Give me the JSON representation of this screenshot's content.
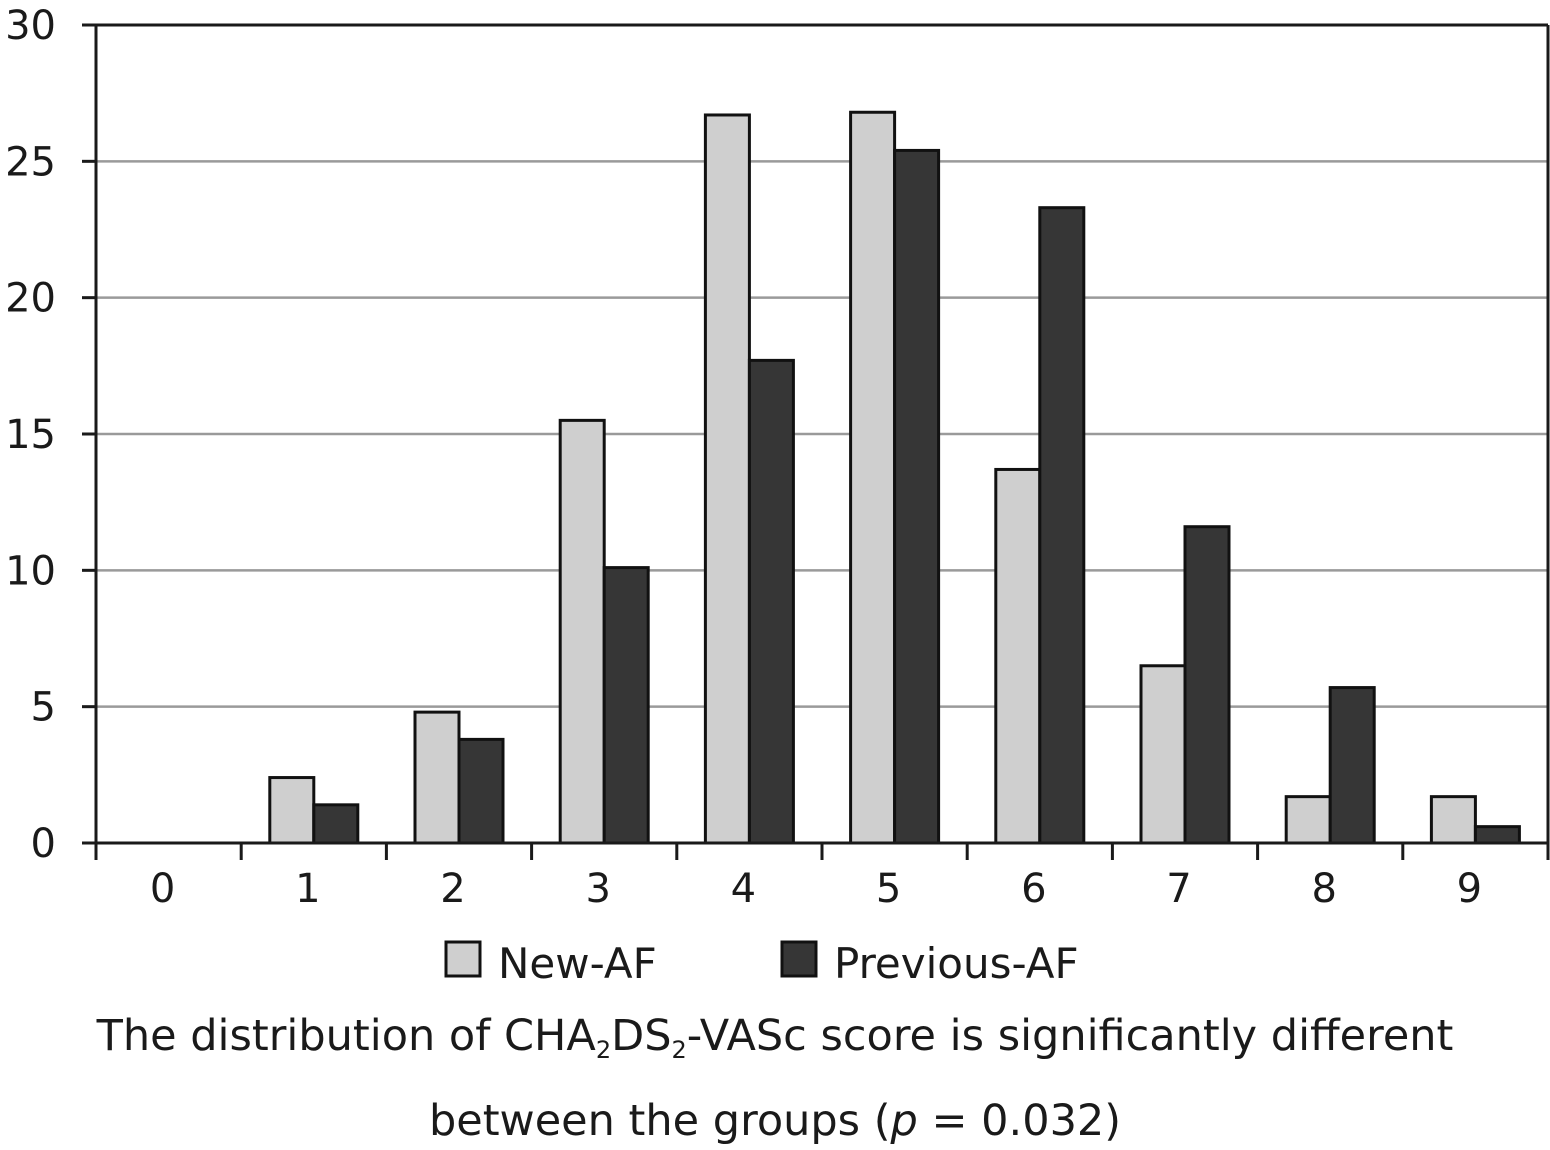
{
  "chart_data": {
    "type": "bar",
    "categories": [
      "0",
      "1",
      "2",
      "3",
      "4",
      "5",
      "6",
      "7",
      "8",
      "9"
    ],
    "series": [
      {
        "name": "New-AF",
        "color": "#cfcfcf",
        "values": [
          0,
          2.4,
          4.8,
          15.5,
          26.7,
          26.8,
          13.7,
          6.5,
          1.7,
          1.7
        ]
      },
      {
        "name": "Previous-AF",
        "color": "#363636",
        "values": [
          0,
          1.4,
          3.8,
          10.1,
          17.7,
          25.4,
          23.3,
          11.6,
          5.7,
          0.6
        ]
      }
    ],
    "yticks": [
      "0",
      "5",
      "10",
      "15",
      "20",
      "25",
      "30"
    ],
    "ylim": [
      0,
      30
    ],
    "grid": true,
    "legend_position": "bottom",
    "caption": {
      "line1_before": "The distribution of CHA",
      "sub1": "2",
      "line1_mid": "DS",
      "sub2": "2",
      "line1_after": "-VASc score is significantly different",
      "line2_before": "between the groups (",
      "p_symbol": "p",
      "line2_after": " = 0.032)"
    }
  }
}
